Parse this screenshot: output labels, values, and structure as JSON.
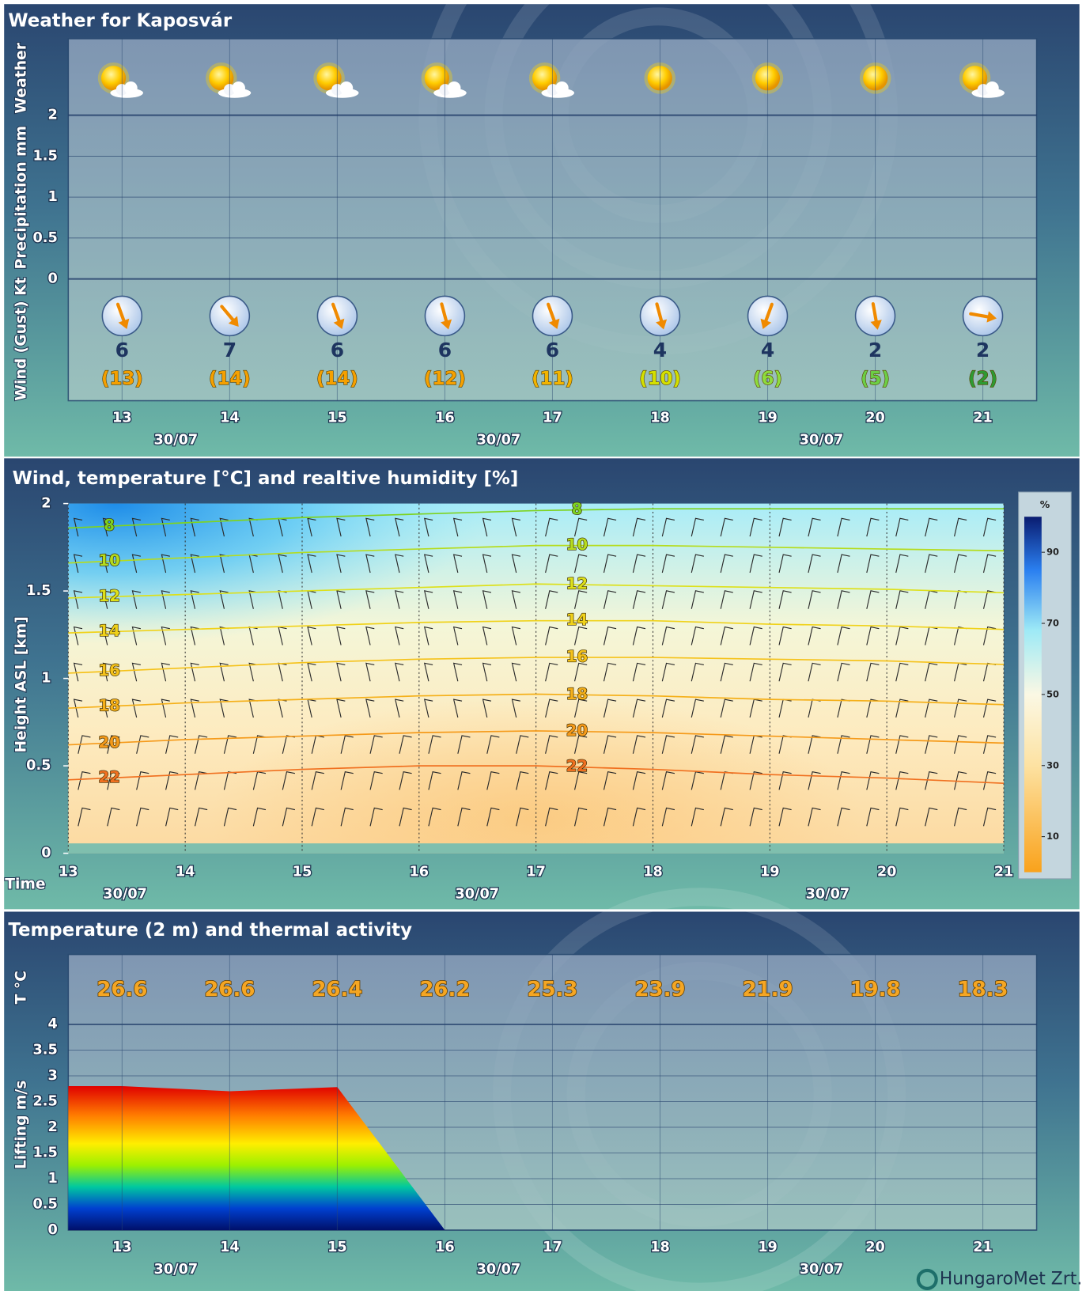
{
  "chart_data": [
    {
      "type": "meteogram",
      "title": "Weather for Kaposvár",
      "ylabels": [
        "Weather",
        "Precipitation mm",
        "Wind (Gust) Kt"
      ],
      "categories": [
        "13",
        "14",
        "15",
        "16",
        "17",
        "18",
        "19",
        "20",
        "21"
      ],
      "date_labels": [
        "30/07",
        "30/07",
        "30/07"
      ],
      "precipitation": {
        "ylim": [
          0,
          2
        ],
        "yticks": [
          0,
          0.5,
          1,
          1.5,
          2
        ],
        "values": [
          0,
          0,
          0,
          0,
          0,
          0,
          0,
          0,
          0
        ]
      },
      "wind_speed": {
        "values": [
          6,
          7,
          6,
          6,
          6,
          4,
          4,
          2,
          2
        ]
      },
      "wind_gust": {
        "values": [
          13,
          14,
          14,
          12,
          11,
          10,
          6,
          5,
          2
        ],
        "value_labels": [
          "(13)",
          "(14)",
          "(14)",
          "(12)",
          "(11)",
          "(10)",
          "(6)",
          "(5)",
          "(2)"
        ],
        "colors": [
          "#f5a000",
          "#f5a000",
          "#f5a000",
          "#f5a000",
          "#f2b400",
          "#d4e000",
          "#8edc3c",
          "#6ccf45",
          "#2e9a32"
        ]
      },
      "wind_direction": {
        "values": [
          340,
          320,
          340,
          345,
          340,
          345,
          20,
          350,
          280
        ]
      }
    },
    {
      "type": "contour",
      "title": "Wind, temperature [°C] and realtive humidity [%]",
      "ylabel": "Height ASL [km]",
      "xlabel": "Time",
      "xlim": [
        13,
        21
      ],
      "xticks": [
        13,
        14,
        15,
        16,
        17,
        18,
        19,
        20,
        21
      ],
      "ylim": [
        0,
        2
      ],
      "yticks": [
        0,
        0.5,
        1,
        1.5,
        2
      ],
      "x": [
        13,
        14,
        15,
        16,
        17,
        18,
        19,
        20,
        21
      ],
      "date_labels": [
        "30/07",
        "30/07",
        "30/07"
      ],
      "isotherms": [
        {
          "level": 8,
          "color": "#7ed321",
          "heights": [
            1.86,
            1.89,
            1.92,
            1.94,
            1.96,
            1.97,
            1.97,
            1.97,
            1.97
          ]
        },
        {
          "level": 10,
          "color": "#b5dc1e",
          "heights": [
            1.66,
            1.69,
            1.72,
            1.74,
            1.76,
            1.76,
            1.75,
            1.74,
            1.73
          ]
        },
        {
          "level": 12,
          "color": "#dde01a",
          "heights": [
            1.46,
            1.48,
            1.5,
            1.52,
            1.54,
            1.53,
            1.52,
            1.51,
            1.49
          ]
        },
        {
          "level": 14,
          "color": "#f0d21a",
          "heights": [
            1.26,
            1.28,
            1.3,
            1.32,
            1.33,
            1.33,
            1.31,
            1.3,
            1.28
          ]
        },
        {
          "level": 16,
          "color": "#f5c21a",
          "heights": [
            1.03,
            1.06,
            1.09,
            1.11,
            1.12,
            1.12,
            1.11,
            1.1,
            1.08
          ]
        },
        {
          "level": 18,
          "color": "#f5b01a",
          "heights": [
            0.83,
            0.86,
            0.88,
            0.9,
            0.91,
            0.9,
            0.88,
            0.87,
            0.85
          ]
        },
        {
          "level": 20,
          "color": "#f59a1a",
          "heights": [
            0.62,
            0.65,
            0.67,
            0.69,
            0.7,
            0.69,
            0.67,
            0.65,
            0.63
          ]
        },
        {
          "level": 22,
          "color": "#f07020",
          "heights": [
            0.42,
            0.45,
            0.48,
            0.5,
            0.5,
            0.48,
            0.45,
            0.43,
            0.4
          ]
        }
      ],
      "colorbar": {
        "label": "%",
        "clim": [
          0,
          100
        ],
        "ticks": [
          10,
          30,
          50,
          70,
          90
        ]
      }
    },
    {
      "type": "area",
      "title": "Temperature (2 m) and thermal activity",
      "ylabels": [
        "T °C",
        "Lifting m/s"
      ],
      "categories": [
        "13",
        "14",
        "15",
        "16",
        "17",
        "18",
        "19",
        "20",
        "21"
      ],
      "date_labels": [
        "30/07",
        "30/07",
        "30/07"
      ],
      "temperature": {
        "values": [
          26.6,
          26.6,
          26.4,
          26.2,
          25.3,
          23.9,
          21.9,
          19.8,
          18.3
        ],
        "color": "#f5a623"
      },
      "lifting": {
        "ylim": [
          0,
          4
        ],
        "yticks": [
          0,
          0.5,
          1,
          1.5,
          2,
          2.5,
          3,
          3.5,
          4
        ],
        "values": [
          2.8,
          2.7,
          2.78,
          0,
          0,
          0,
          0,
          0,
          0
        ]
      }
    }
  ],
  "footer": "HungaroMet Zrt."
}
